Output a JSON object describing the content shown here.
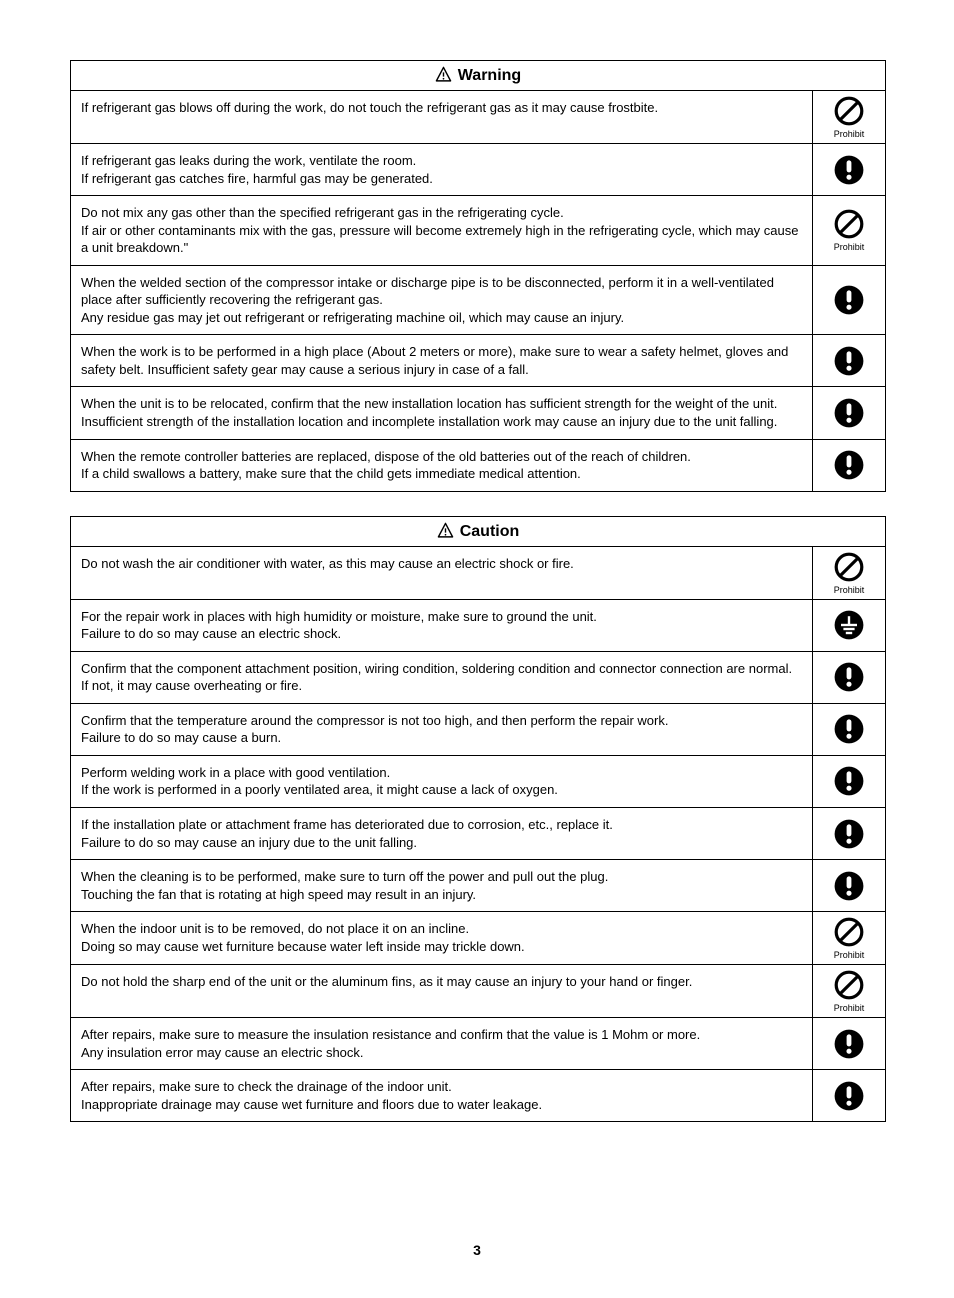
{
  "page_number": "3",
  "colors": {
    "text": "#000000",
    "bg": "#ffffff",
    "border": "#000000"
  },
  "icons": {
    "triangle_size": 17,
    "circle_size": 32,
    "prohibit_label": "Prohibit"
  },
  "sections": [
    {
      "title": "Warning",
      "rows": [
        {
          "text": "If refrigerant gas blows off during the work, do not touch the refrigerant gas as it may cause frostbite.",
          "icon": "prohibit"
        },
        {
          "text": "If refrigerant gas leaks during the work, ventilate the room.\nIf refrigerant gas catches fire, harmful gas may be generated.",
          "icon": "mandatory"
        },
        {
          "text": "Do not mix any gas other than the specified refrigerant gas in the refrigerating cycle.\nIf air or other contaminants mix with the gas, pressure will become extremely high in the refrigerating cycle, which may cause a unit breakdown.\"",
          "icon": "prohibit"
        },
        {
          "text": "When the welded section of the compressor intake or discharge pipe is to be disconnected, perform it in a well-ventilated place after sufficiently recovering the refrigerant gas.\nAny residue gas may jet out refrigerant or refrigerating machine oil, which may cause an injury.",
          "icon": "mandatory"
        },
        {
          "text": "When the work is to be performed in a high place (About 2 meters or more), make sure to wear a safety helmet, gloves and safety belt. Insufficient safety gear may cause a serious injury in case of a fall.",
          "icon": "mandatory"
        },
        {
          "text": "When the unit is to be relocated, confirm that the new installation location has sufficient strength for the weight of the unit. Insufficient strength of the installation location and incomplete installation work may cause an injury due to the unit falling.",
          "icon": "mandatory"
        },
        {
          "text": "When the remote controller batteries are replaced, dispose of the old batteries out of the reach of children.\nIf a child swallows a battery, make sure that the child gets immediate medical attention.",
          "icon": "mandatory"
        }
      ]
    },
    {
      "title": "Caution",
      "rows": [
        {
          "text": "Do not wash the air conditioner with water, as this may cause an electric shock or fire.",
          "icon": "prohibit"
        },
        {
          "text": "For the repair work in places with high humidity or moisture, make sure to ground the unit.\nFailure to do so may cause an electric shock.",
          "icon": "ground"
        },
        {
          "text": "Confirm that the component attachment position, wiring condition, soldering condition and connector connection are normal.\nIf not, it may cause overheating or fire.",
          "icon": "mandatory"
        },
        {
          "text": "Confirm that the temperature around the compressor is not too high, and then perform the repair work.\nFailure to do so may cause a burn.",
          "icon": "mandatory"
        },
        {
          "text": "Perform welding work in a place with good ventilation.\nIf the work is performed in a poorly ventilated area, it might cause a lack of oxygen.",
          "icon": "mandatory"
        },
        {
          "text": "If the installation plate or attachment frame has deteriorated due to corrosion, etc., replace it.\nFailure to do so may cause an injury due to the unit falling.",
          "icon": "mandatory"
        },
        {
          "text": "When the cleaning is to be performed, make sure to turn off the power and pull out the plug.\nTouching the fan that is rotating at high speed may result in an injury.",
          "icon": "mandatory"
        },
        {
          "text": "When the indoor unit is to be removed, do not place it on an incline.\nDoing so may cause wet furniture because water left inside may trickle down.",
          "icon": "prohibit"
        },
        {
          "text": "Do not hold the sharp end of the unit or the aluminum fins, as it may cause an injury to your hand or finger.",
          "icon": "prohibit"
        },
        {
          "text": "After repairs, make sure to measure the insulation resistance and confirm that the value is 1 Mohm or more.\nAny insulation error may cause an electric shock.",
          "icon": "mandatory"
        },
        {
          "text": "After repairs, make sure to check the drainage of the indoor unit.\nInappropriate drainage may cause wet furniture and floors due to water leakage.",
          "icon": "mandatory"
        }
      ]
    }
  ]
}
